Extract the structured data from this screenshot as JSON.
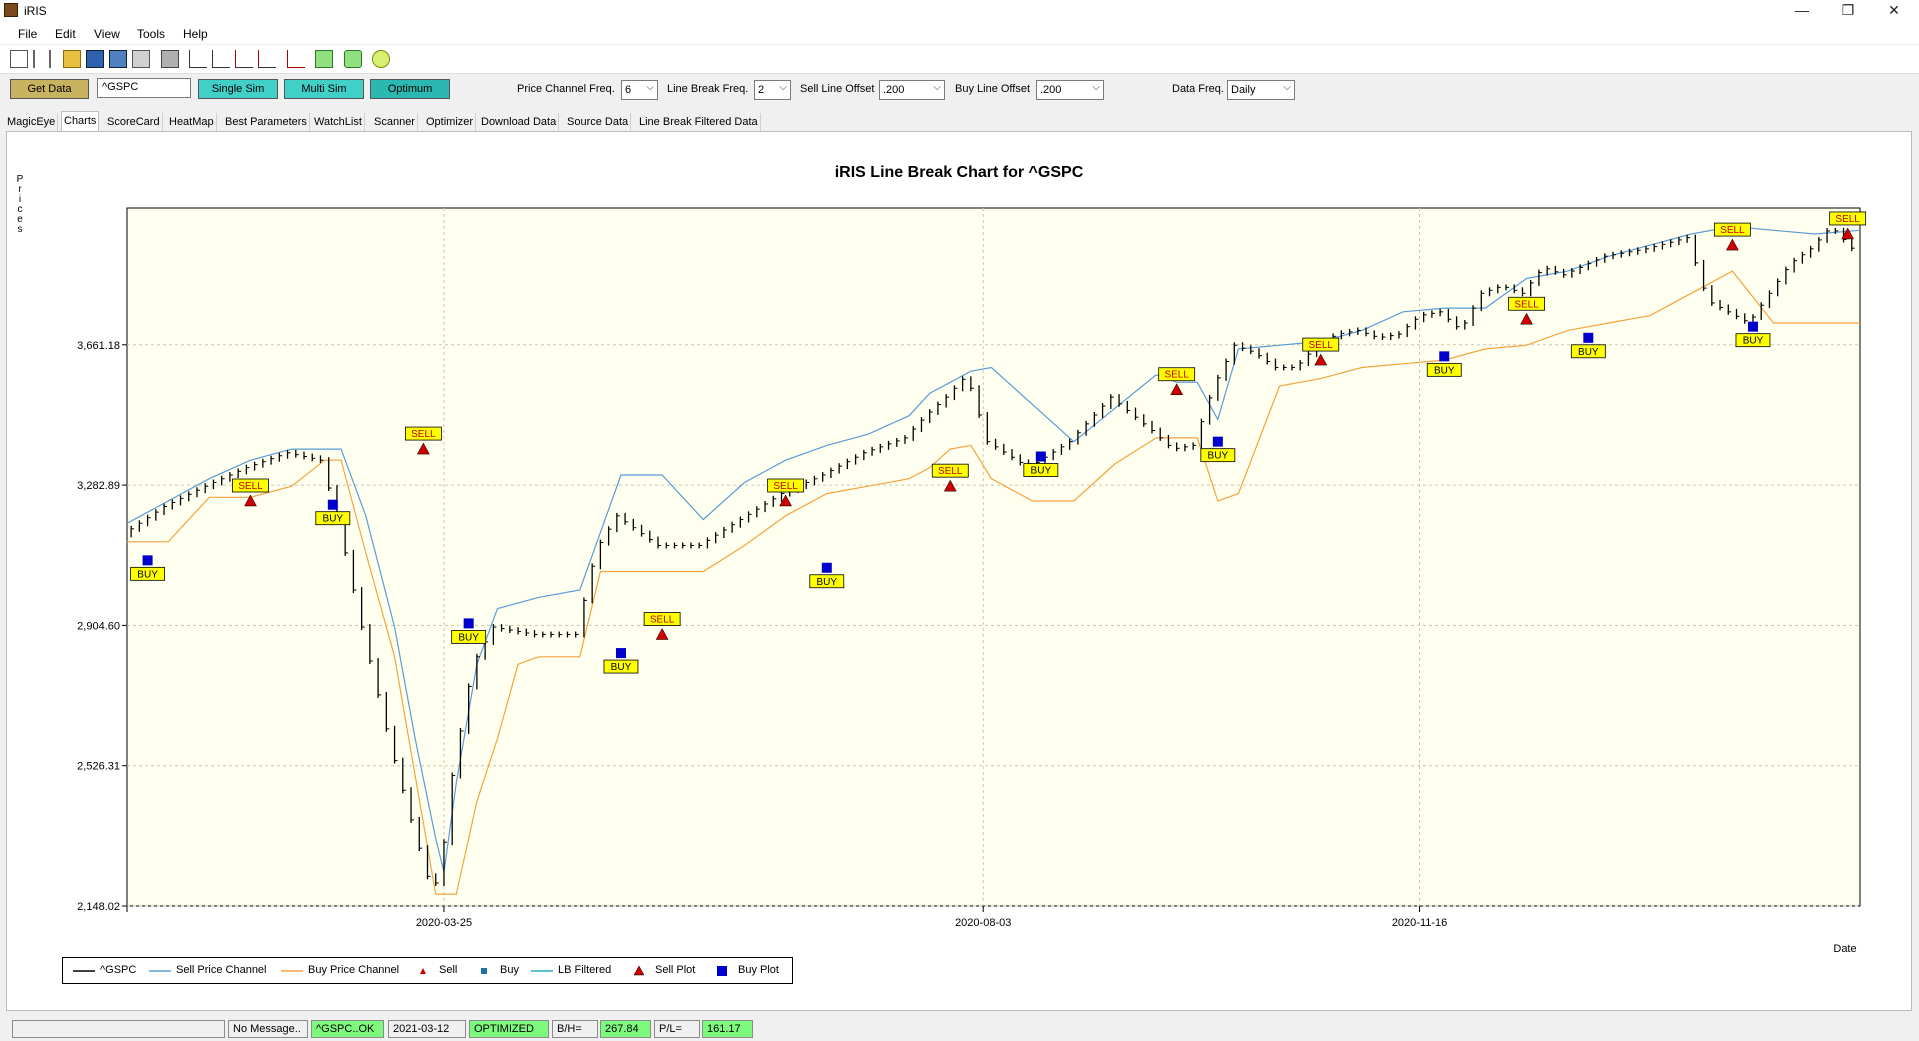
{
  "window": {
    "title": "iRIS",
    "minimize": "—",
    "restore": "❐",
    "close": "✕"
  },
  "menu": [
    "File",
    "Edit",
    "View",
    "Tools",
    "Help"
  ],
  "toolbar_icons": [
    "new-icon",
    "cut-icon",
    "open-icon",
    "save-icon",
    "save-all-icon",
    "paste-icon",
    "print-icon",
    "chart-icon",
    "chart-compare-icon",
    "chart-optimize-icon",
    "chart-scan-icon",
    "chart-trend-icon",
    "report-icon",
    "stop-icon",
    "refresh-icon"
  ],
  "controls": {
    "get_data": "Get Data",
    "symbol": "^GSPC",
    "single_sim": "Single Sim",
    "multi_sim": "Multi Sim",
    "optimum": "Optimum",
    "price_channel_label": "Price Channel Freq.",
    "price_channel_value": "6",
    "line_break_label": "Line Break Freq.",
    "line_break_value": "2",
    "sell_offset_label": "Sell Line Offset",
    "sell_offset_value": ".200",
    "buy_offset_label": "Buy Line Offset",
    "buy_offset_value": ".200",
    "data_freq_label": "Data Freq.",
    "data_freq_value": "Daily"
  },
  "tabs": [
    "MagicEye",
    "Charts",
    "ScoreCard",
    "HeatMap",
    "Best Parameters",
    "WatchList",
    "Scanner",
    "Optimizer",
    "Download Data",
    "Source Data",
    "Line Break Filtered Data"
  ],
  "active_tab": "Charts",
  "colors": {
    "price": "#000000",
    "sell_channel": "#5b9bd5",
    "buy_channel": "#f4a340",
    "sell": "#cc0000",
    "buy": "#1f6fa0",
    "lb_filtered": "#2ab0c0",
    "sell_plot": "#cc0000",
    "buy_plot": "#0000cc",
    "plot_bg": "#fffff0",
    "label_bg": "#ffff00",
    "button_gold": "#c8b460",
    "button_teal": "#40d0c8"
  },
  "chart_data": {
    "type": "line",
    "title": "iRIS Line Break Chart for ^GSPC",
    "ylabel": "Prices",
    "xlabel": "Date",
    "y_ticks": [
      "3,661.18",
      "3,282.89",
      "2,904.60",
      "2,526.31",
      "2,148.02"
    ],
    "y_tick_values": [
      3661.18,
      3282.89,
      2904.6,
      2526.31,
      2148.02
    ],
    "ylim": [
      2148.02,
      4030
    ],
    "x_ticks": [
      "2020-03-25",
      "2020-08-03",
      "2020-11-16"
    ],
    "x_tick_values": [
      77,
      208,
      314
    ],
    "xlim": [
      0,
      421
    ],
    "grid": true,
    "legend_position": "bottom-left",
    "legend": [
      "^GSPC",
      "Sell Price Channel",
      "Buy Price Channel",
      "Sell",
      "Buy",
      "LB Filtered",
      "Sell Plot",
      "Buy Plot"
    ],
    "series": [
      {
        "name": "^GSPC",
        "x": [
          0,
          10,
          20,
          30,
          40,
          48,
          52,
          58,
          65,
          70,
          75,
          77,
          80,
          85,
          90,
          100,
          110,
          115,
          120,
          130,
          140,
          150,
          160,
          170,
          180,
          190,
          195,
          200,
          205,
          210,
          220,
          230,
          240,
          250,
          255,
          260,
          265,
          270,
          275,
          280,
          285,
          290,
          295,
          300,
          305,
          310,
          315,
          320,
          325,
          330,
          335,
          340,
          345,
          350,
          360,
          370,
          380,
          385,
          395,
          405,
          410,
          415,
          421
        ],
        "y": [
          3150,
          3225,
          3280,
          3330,
          3370,
          3350,
          3200,
          2900,
          2580,
          2380,
          2190,
          2230,
          2500,
          2800,
          2900,
          2880,
          2880,
          3110,
          3200,
          3120,
          3120,
          3190,
          3260,
          3310,
          3370,
          3410,
          3470,
          3520,
          3580,
          3400,
          3330,
          3400,
          3520,
          3430,
          3380,
          3390,
          3550,
          3660,
          3640,
          3600,
          3600,
          3660,
          3690,
          3700,
          3680,
          3690,
          3740,
          3750,
          3700,
          3800,
          3820,
          3800,
          3870,
          3850,
          3900,
          3920,
          3950,
          3780,
          3720,
          3880,
          3920,
          3980,
          3910
        ]
      },
      {
        "name": "Sell Price Channel",
        "x": [
          0,
          10,
          20,
          30,
          40,
          48,
          52,
          58,
          65,
          70,
          75,
          77,
          80,
          85,
          90,
          100,
          110,
          120,
          130,
          140,
          150,
          160,
          170,
          180,
          190,
          195,
          200,
          205,
          210,
          220,
          230,
          240,
          250,
          255,
          260,
          265,
          270,
          280,
          290,
          300,
          310,
          320,
          330,
          340,
          350,
          360,
          370,
          380,
          390,
          400,
          410,
          421
        ],
        "y": [
          3180,
          3240,
          3300,
          3350,
          3380,
          3380,
          3380,
          3200,
          2900,
          2600,
          2330,
          2240,
          2480,
          2800,
          2950,
          2980,
          3000,
          3310,
          3310,
          3190,
          3290,
          3350,
          3390,
          3420,
          3470,
          3530,
          3560,
          3590,
          3600,
          3500,
          3400,
          3490,
          3580,
          3560,
          3560,
          3460,
          3650,
          3660,
          3670,
          3700,
          3750,
          3760,
          3760,
          3840,
          3860,
          3900,
          3930,
          3960,
          3980,
          3970,
          3960,
          3970
        ]
      },
      {
        "name": "Buy Price Channel",
        "x": [
          0,
          10,
          20,
          30,
          40,
          48,
          52,
          58,
          65,
          70,
          75,
          77,
          80,
          85,
          90,
          95,
          100,
          110,
          115,
          120,
          130,
          140,
          150,
          160,
          170,
          180,
          190,
          195,
          200,
          205,
          210,
          220,
          230,
          240,
          250,
          260,
          265,
          270,
          280,
          290,
          300,
          310,
          320,
          330,
          340,
          350,
          360,
          370,
          380,
          390,
          400,
          410,
          421
        ],
        "y": [
          3130,
          3130,
          3250,
          3250,
          3280,
          3350,
          3350,
          3100,
          2820,
          2500,
          2180,
          2180,
          2180,
          2430,
          2600,
          2800,
          2820,
          2820,
          3050,
          3050,
          3050,
          3050,
          3120,
          3200,
          3260,
          3280,
          3300,
          3330,
          3380,
          3390,
          3300,
          3240,
          3240,
          3340,
          3410,
          3410,
          3240,
          3260,
          3550,
          3570,
          3600,
          3610,
          3620,
          3650,
          3660,
          3700,
          3720,
          3740,
          3800,
          3860,
          3720,
          3720,
          3720
        ]
      }
    ],
    "sell_signals": [
      {
        "x": 30,
        "y": 3240,
        "label": "SELL"
      },
      {
        "x": 72,
        "y": 3380,
        "label": "SELL"
      },
      {
        "x": 130,
        "y": 2880,
        "label": "SELL"
      },
      {
        "x": 160,
        "y": 3240,
        "label": "SELL"
      },
      {
        "x": 200,
        "y": 3280,
        "label": "SELL"
      },
      {
        "x": 255,
        "y": 3540,
        "label": "SELL"
      },
      {
        "x": 290,
        "y": 3620,
        "label": "SELL"
      },
      {
        "x": 340,
        "y": 3730,
        "label": "SELL"
      },
      {
        "x": 390,
        "y": 3930,
        "label": "SELL"
      },
      {
        "x": 418,
        "y": 3960,
        "label": "SELL"
      }
    ],
    "buy_signals": [
      {
        "x": 5,
        "y": 3080,
        "label": "BUY"
      },
      {
        "x": 50,
        "y": 3230,
        "label": "BUY"
      },
      {
        "x": 83,
        "y": 2910,
        "label": "BUY"
      },
      {
        "x": 120,
        "y": 2830,
        "label": "BUY"
      },
      {
        "x": 170,
        "y": 3060,
        "label": "BUY"
      },
      {
        "x": 222,
        "y": 3360,
        "label": "BUY"
      },
      {
        "x": 265,
        "y": 3400,
        "label": "BUY"
      },
      {
        "x": 320,
        "y": 3630,
        "label": "BUY"
      },
      {
        "x": 355,
        "y": 3680,
        "label": "BUY"
      },
      {
        "x": 395,
        "y": 3710,
        "label": "BUY"
      }
    ]
  },
  "status": {
    "message": "No Message..",
    "symbol_ok": "^GSPC..OK",
    "date": "2021-03-12",
    "mode": "OPTIMIZED",
    "bh_label": "B/H=",
    "bh_value": "267.84",
    "pl_label": "P/L=",
    "pl_value": "161.17"
  }
}
